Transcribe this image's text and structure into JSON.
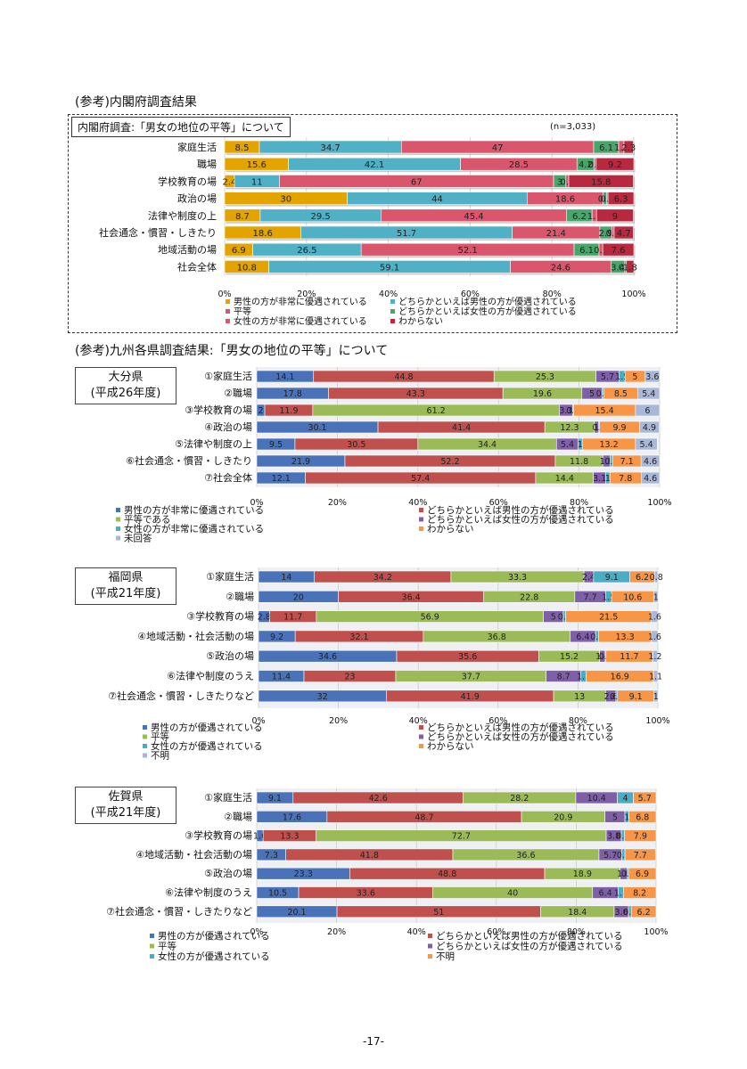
{
  "header": {
    "section1_title": "(参考)内閣府調査結果",
    "section1_box": "内閣府調査:「男女の地位の平等」について",
    "section1_n": "(n=3,033)",
    "section2_title": "(参考)九州各県調査結果:「男女の地位の平等」について"
  },
  "prefectures": {
    "oita": {
      "name": "大分県",
      "year": "(平成26年度)"
    },
    "fukuoka": {
      "name": "福岡県",
      "year": "(平成21年度)"
    },
    "saga": {
      "name": "佐賀県",
      "year": "(平成21年度)"
    }
  },
  "footer": {
    "page": "-17-"
  },
  "chart_data": [
    {
      "type": "bar",
      "orientation": "horizontal-stacked",
      "title": "内閣府調査:「男女の地位の平等」について",
      "categories": [
        "家庭生活",
        "職場",
        "学校教育の場",
        "政治の場",
        "法律や制度の上",
        "社会通念・慣習・しきたり",
        "地域活動の場",
        "社会全体"
      ],
      "series": [
        {
          "name": "男性の方が非常に優遇されている",
          "color": "#e3a400",
          "values": [
            8.5,
            15.6,
            2.4,
            30,
            8.7,
            18.6,
            6.9,
            10.8
          ]
        },
        {
          "name": "どちらかといえば男性の方が優遇されている",
          "color": "#4fb0c6",
          "values": [
            34.7,
            42.1,
            11,
            44,
            29.5,
            51.7,
            26.5,
            59.1
          ]
        },
        {
          "name": "平等",
          "color": "#d9566c",
          "values": [
            47,
            28.5,
            67,
            18.6,
            45.4,
            21.4,
            52.1,
            24.6
          ]
        },
        {
          "name": "どちらかといえば女性の方が優遇されている",
          "color": "#4aa56a",
          "values": [
            6.1,
            4.2,
            3,
            0.9,
            6.2,
            2.9,
            6.1,
            3.4
          ]
        },
        {
          "name": "女性の方が非常に優遇されている",
          "color": "#d9566c",
          "values": [
            1.3,
            0.5,
            0.7,
            0.3,
            1.1,
            0.6,
            0.9,
            0.4
          ]
        },
        {
          "name": "わからない",
          "color": "#b8283e",
          "values": [
            2.3,
            9.2,
            15.8,
            6.3,
            9,
            4.7,
            7.6,
            1.8
          ]
        }
      ],
      "xlim": [
        0,
        100
      ],
      "ticks": [
        "0%",
        "20%",
        "40%",
        "60%",
        "80%",
        "100%"
      ],
      "legend": [
        "男性の方が非常に優遇されている",
        "どちらかといえば男性の方が優遇されている",
        "平等",
        "どちらかといえば女性の方が優遇されている",
        "女性の方が非常に優遇されている",
        "わからない"
      ]
    },
    {
      "type": "bar",
      "orientation": "horizontal-stacked",
      "title": "大分県(平成26年度)",
      "categories": [
        "①家庭生活",
        "②職場",
        "③学校教育の場",
        "④政治の場",
        "⑤法律や制度の上",
        "⑥社会通念・慣習・しきたり",
        "⑦社会全体"
      ],
      "series": [
        {
          "name": "男性の方が非常に優遇されている",
          "color": "#4a72b8",
          "values": [
            14.1,
            17.8,
            2.0,
            30.1,
            9.5,
            21.9,
            12.1
          ]
        },
        {
          "name": "どちらかといえば男性の方が優遇されている",
          "color": "#c0504d",
          "values": [
            44.8,
            43.3,
            11.9,
            41.4,
            30.5,
            52.2,
            57.4
          ]
        },
        {
          "name": "平等である",
          "color": "#9bbb59",
          "values": [
            25.3,
            19.6,
            61.2,
            12.3,
            34.4,
            11.8,
            14.4
          ]
        },
        {
          "name": "どちらかといえば女性の方が優遇されている",
          "color": "#7f5fa8",
          "values": [
            5.7,
            5.0,
            3.3,
            1.0,
            5.4,
            1.8,
            3.1
          ]
        },
        {
          "name": "女性の方が非常に優遇されている",
          "color": "#4bacc6",
          "values": [
            1.5,
            0.4,
            0.2,
            0.3,
            1,
            0.6,
            1.0
          ]
        },
        {
          "name": "わからない",
          "color": "#f79646",
          "values": [
            5.0,
            8.5,
            15.4,
            9.9,
            13.2,
            7.1,
            7.8
          ]
        },
        {
          "name": "未回答",
          "color": "#a9b8d8",
          "values": [
            3.6,
            5.4,
            6.0,
            4.9,
            5.4,
            4.6,
            4.6
          ]
        }
      ],
      "xlim": [
        0,
        100
      ],
      "ticks": [
        "0%",
        "20%",
        "40%",
        "60%",
        "80%",
        "100%"
      ],
      "legend": [
        "男性の方が非常に優遇されている",
        "どちらかといえば男性の方が優遇されている",
        "平等である",
        "どちらかといえば女性の方が優遇されている",
        "女性の方が非常に優遇されている",
        "わからない",
        "未回答"
      ]
    },
    {
      "type": "bar",
      "orientation": "horizontal-stacked",
      "title": "福岡県(平成21年度)",
      "categories": [
        "①家庭生活",
        "②職場",
        "③学校教育の場",
        "④地域活動・社会活動の場",
        "⑤政治の場",
        "⑥法律や制度のうえ",
        "⑦社会通念・慣習・しきたりなど"
      ],
      "series": [
        {
          "name": "男性の方が優遇されている",
          "color": "#4a72b8",
          "values": [
            14.0,
            20.0,
            2.8,
            9.2,
            34.6,
            11.4,
            32.0
          ]
        },
        {
          "name": "どちらかといえば男性の方が優遇されている",
          "color": "#c0504d",
          "values": [
            34.2,
            36.4,
            11.7,
            32.1,
            35.6,
            23.0,
            41.9
          ]
        },
        {
          "name": "平等",
          "color": "#9bbb59",
          "values": [
            33.3,
            22.8,
            56.9,
            36.8,
            15.2,
            37.7,
            13.0
          ]
        },
        {
          "name": "どちらかといえば女性の方が優遇されている",
          "color": "#7f5fa8",
          "values": [
            2.4,
            7.7,
            5.0,
            6.4,
            1.4,
            8.7,
            2.6
          ]
        },
        {
          "name": "女性の方が優遇されている",
          "color": "#4bacc6",
          "values": [
            9.1,
            1.5,
            0.6,
            0.7,
            0.2,
            1.3,
            0.4
          ]
        },
        {
          "name": "わからない",
          "color": "#f79646",
          "values": [
            6.2,
            10.6,
            21.5,
            13.3,
            11.7,
            16.9,
            9.1
          ]
        },
        {
          "name": "不明",
          "color": "#a9b8d8",
          "values": [
            0.8,
            1.0,
            1.6,
            1.6,
            1.2,
            1.1,
            1.0
          ]
        }
      ],
      "xlim": [
        0,
        100
      ],
      "ticks": [
        "0%",
        "20%",
        "40%",
        "60%",
        "80%",
        "100%"
      ],
      "legend": [
        "男性の方が優遇されている",
        "どちらかといえば男性の方が優遇されている",
        "平等",
        "どちらかといえば女性の方が優遇されている",
        "女性の方が優遇されている",
        "わからない",
        "不明"
      ]
    },
    {
      "type": "bar",
      "orientation": "horizontal-stacked",
      "title": "佐賀県(平成21年度)",
      "categories": [
        "①家庭生活",
        "②職場",
        "③学校教育の場",
        "④地域活動・社会活動の場",
        "⑤政治の場",
        "⑥法律や制度のうえ",
        "⑦社会通念・慣習・しきたりなど"
      ],
      "series": [
        {
          "name": "男性の方が優遇されている",
          "color": "#4a72b8",
          "values": [
            9.1,
            17.6,
            1.6,
            7.3,
            23.3,
            10.5,
            20.1
          ]
        },
        {
          "name": "どちらかといえば男性の方が優遇されている",
          "color": "#c0504d",
          "values": [
            42.6,
            48.7,
            13.3,
            41.8,
            48.8,
            33.6,
            51.0
          ]
        },
        {
          "name": "平等",
          "color": "#9bbb59",
          "values": [
            28.2,
            20.9,
            72.7,
            36.6,
            18.9,
            40.0,
            18.4
          ]
        },
        {
          "name": "どちらかといえば女性の方が優遇されている",
          "color": "#7f5fa8",
          "values": [
            10.4,
            5.0,
            3.8,
            5.7,
            1.8,
            6.4,
            3.6
          ]
        },
        {
          "name": "女性の方が優遇されている",
          "color": "#4bacc6",
          "values": [
            4.0,
            1.0,
            0.8,
            0.8,
            0.3,
            1.3,
            0.7
          ]
        },
        {
          "name": "不明",
          "color": "#f79646",
          "values": [
            5.7,
            6.8,
            7.9,
            7.7,
            6.9,
            8.2,
            6.2
          ]
        }
      ],
      "xlim": [
        0,
        100
      ],
      "ticks": [
        "0%",
        "20%",
        "40%",
        "60%",
        "80%",
        "100%"
      ],
      "legend": [
        "男性の方が優遇されている",
        "どちらかといえば男性の方が優遇されている",
        "平等",
        "どちらかといえば女性の方が優遇されている",
        "女性の方が優遇されている",
        "不明"
      ]
    }
  ]
}
